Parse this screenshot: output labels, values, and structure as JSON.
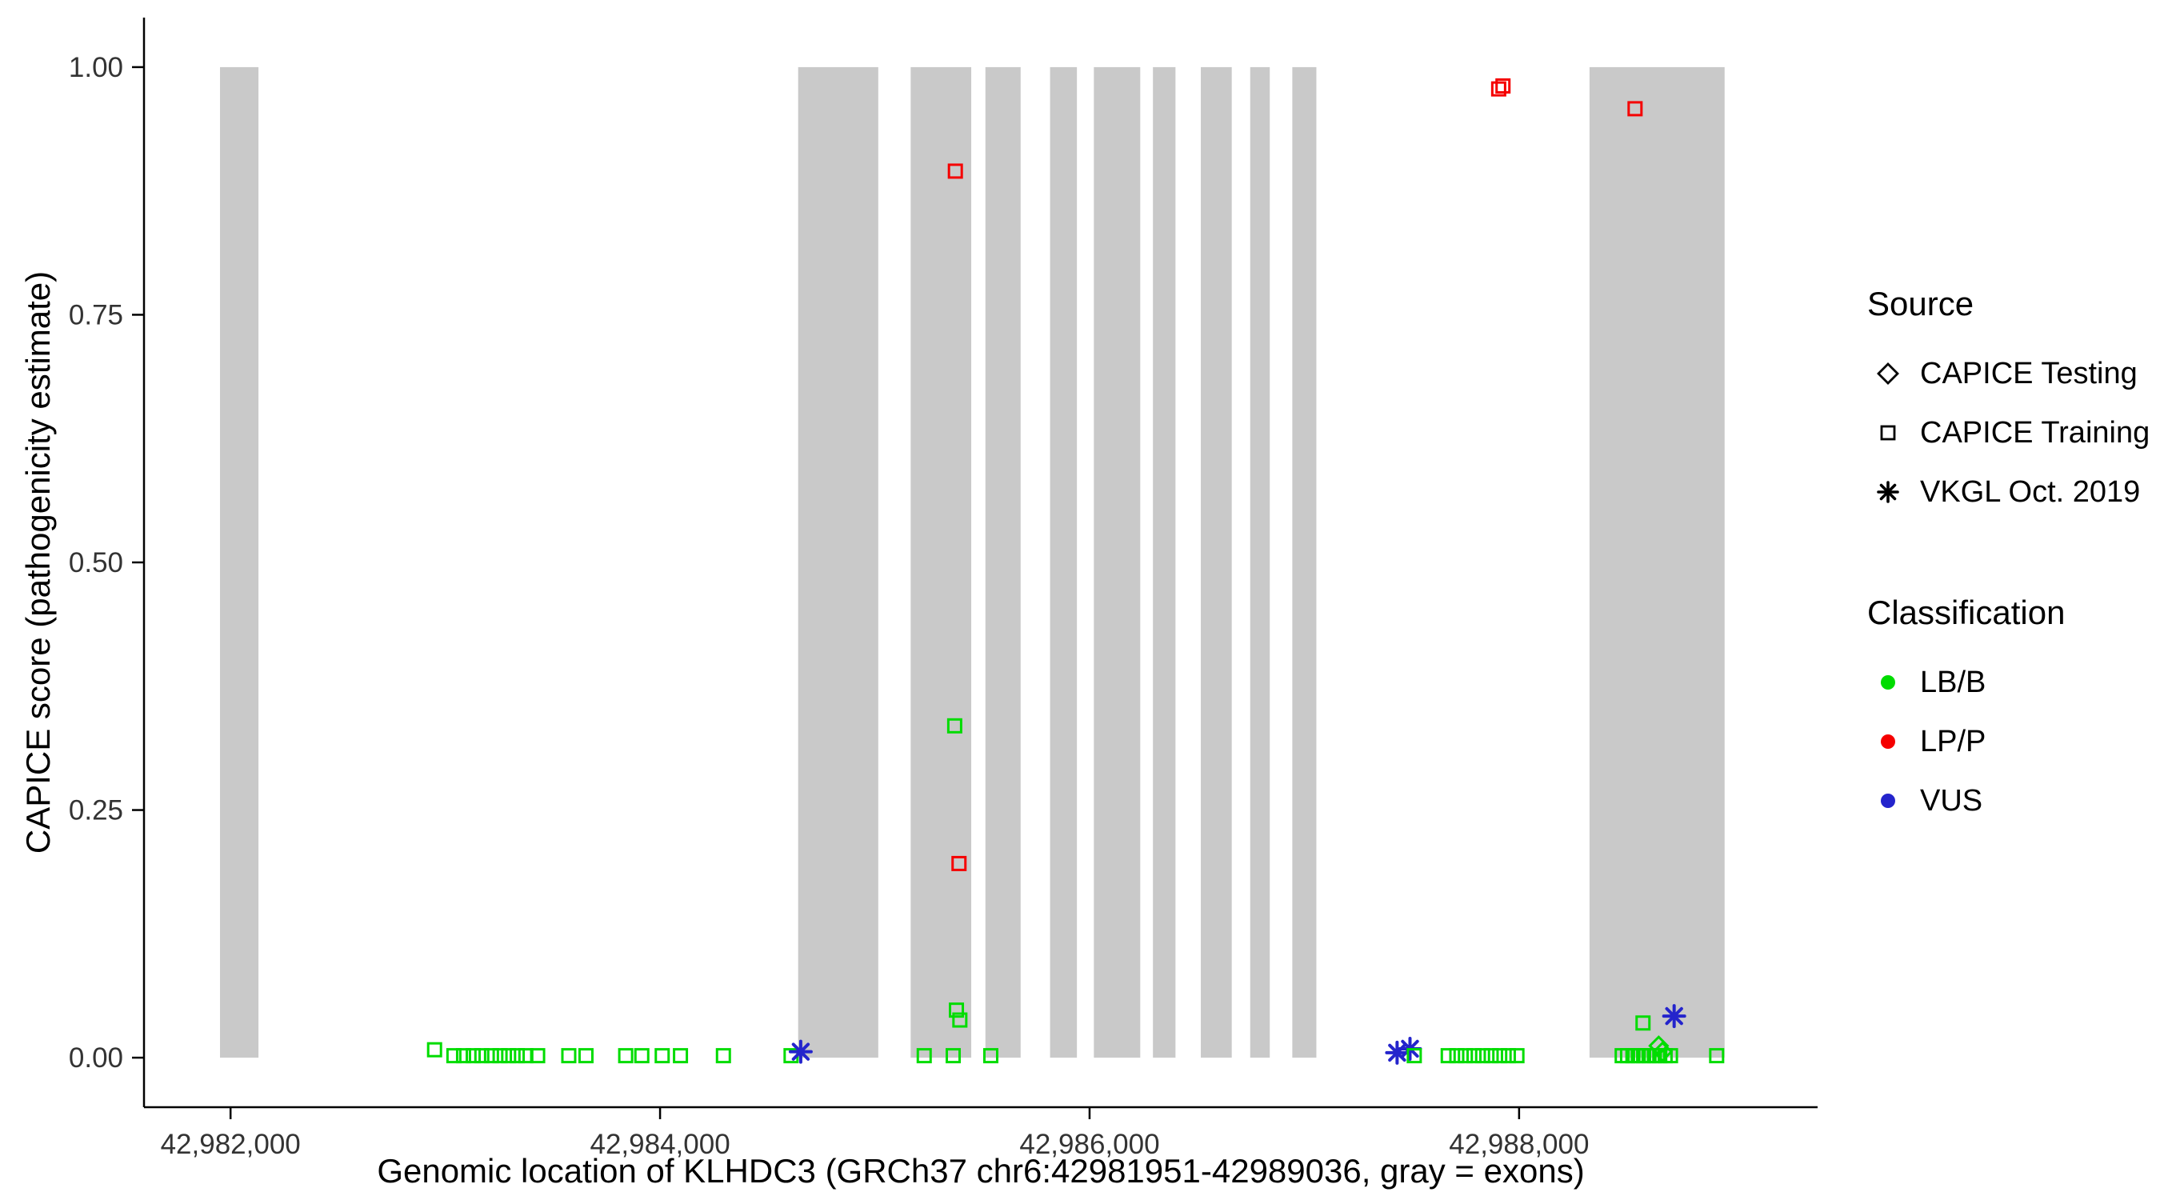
{
  "figure": {
    "background": "#FFFFFF"
  },
  "chart_data": {
    "type": "scatter",
    "title": "",
    "xlabel": "Genomic location of KLHDC3 (GRCh37 chr6:42981951-42989036, gray = exons)",
    "ylabel": "CAPICE score (pathogenicity estimate)",
    "xlim": [
      42981597,
      42989390
    ],
    "ylim": [
      -0.05,
      1.05
    ],
    "xticks": [
      42982000,
      42984000,
      42986000,
      42988000
    ],
    "xtick_labels": [
      "42,982,000",
      "42,984,000",
      "42,986,000",
      "42,988,000"
    ],
    "yticks": [
      0,
      0.25,
      0.5,
      0.75,
      1
    ],
    "ytick_labels": [
      "0.00",
      "0.25",
      "0.50",
      "0.75",
      "1.00"
    ],
    "grid": false,
    "legend_position": "right",
    "exon_color": "#C9C9C9",
    "axis_color": "#000000",
    "tick_text_color": "#333333",
    "exons": [
      [
        42981951,
        42982130
      ],
      [
        42984643,
        42985016
      ],
      [
        42985167,
        42985449
      ],
      [
        42985515,
        42985679
      ],
      [
        42985816,
        42985941
      ],
      [
        42986020,
        42986236
      ],
      [
        42986295,
        42986400
      ],
      [
        42986518,
        42986662
      ],
      [
        42986748,
        42986839
      ],
      [
        42986944,
        42987056
      ],
      [
        42988328,
        42988957
      ]
    ],
    "series_colors": {
      "LB/B": "#00DC00",
      "LP/P": "#F50000",
      "VUS": "#2424CC"
    },
    "marker_shapes": {
      "testing": "diamond",
      "training": "square",
      "vkgl": "asterisk"
    },
    "points": [
      {
        "x": 42982950,
        "y": 0.008,
        "source": "training",
        "classification": "LB/B"
      },
      {
        "x": 42983040,
        "y": 0.002,
        "source": "training",
        "classification": "LB/B"
      },
      {
        "x": 42983085,
        "y": 0.002,
        "source": "training",
        "classification": "LB/B"
      },
      {
        "x": 42983130,
        "y": 0.002,
        "source": "training",
        "classification": "LB/B"
      },
      {
        "x": 42983170,
        "y": 0.002,
        "source": "training",
        "classification": "LB/B"
      },
      {
        "x": 42983215,
        "y": 0.002,
        "source": "training",
        "classification": "LB/B"
      },
      {
        "x": 42983255,
        "y": 0.002,
        "source": "training",
        "classification": "LB/B"
      },
      {
        "x": 42983295,
        "y": 0.002,
        "source": "training",
        "classification": "LB/B"
      },
      {
        "x": 42983335,
        "y": 0.002,
        "source": "training",
        "classification": "LB/B"
      },
      {
        "x": 42983375,
        "y": 0.002,
        "source": "training",
        "classification": "LB/B"
      },
      {
        "x": 42983430,
        "y": 0.002,
        "source": "training",
        "classification": "LB/B"
      },
      {
        "x": 42983575,
        "y": 0.002,
        "source": "training",
        "classification": "LB/B"
      },
      {
        "x": 42983655,
        "y": 0.002,
        "source": "training",
        "classification": "LB/B"
      },
      {
        "x": 42983840,
        "y": 0.002,
        "source": "training",
        "classification": "LB/B"
      },
      {
        "x": 42983915,
        "y": 0.002,
        "source": "training",
        "classification": "LB/B"
      },
      {
        "x": 42984010,
        "y": 0.002,
        "source": "training",
        "classification": "LB/B"
      },
      {
        "x": 42984095,
        "y": 0.002,
        "source": "training",
        "classification": "LB/B"
      },
      {
        "x": 42984295,
        "y": 0.002,
        "source": "training",
        "classification": "LB/B"
      },
      {
        "x": 42984610,
        "y": 0.002,
        "source": "training",
        "classification": "LB/B"
      },
      {
        "x": 42984655,
        "y": 0.006,
        "source": "vkgl",
        "classification": "VUS"
      },
      {
        "x": 42985230,
        "y": 0.002,
        "source": "training",
        "classification": "LB/B"
      },
      {
        "x": 42985365,
        "y": 0.002,
        "source": "training",
        "classification": "LB/B"
      },
      {
        "x": 42985375,
        "y": 0.895,
        "source": "training",
        "classification": "LP/P"
      },
      {
        "x": 42985372,
        "y": 0.335,
        "source": "training",
        "classification": "LB/B"
      },
      {
        "x": 42985392,
        "y": 0.196,
        "source": "training",
        "classification": "LP/P"
      },
      {
        "x": 42985380,
        "y": 0.048,
        "source": "training",
        "classification": "LB/B"
      },
      {
        "x": 42985396,
        "y": 0.038,
        "source": "training",
        "classification": "LB/B"
      },
      {
        "x": 42985540,
        "y": 0.002,
        "source": "training",
        "classification": "LB/B"
      },
      {
        "x": 42987432,
        "y": 0.005,
        "source": "vkgl",
        "classification": "VUS"
      },
      {
        "x": 42987492,
        "y": 0.009,
        "source": "vkgl",
        "classification": "VUS"
      },
      {
        "x": 42987512,
        "y": 0.002,
        "source": "training",
        "classification": "LB/B"
      },
      {
        "x": 42987670,
        "y": 0.002,
        "source": "training",
        "classification": "LB/B"
      },
      {
        "x": 42987710,
        "y": 0.002,
        "source": "training",
        "classification": "LB/B"
      },
      {
        "x": 42987750,
        "y": 0.002,
        "source": "training",
        "classification": "LB/B"
      },
      {
        "x": 42987790,
        "y": 0.002,
        "source": "training",
        "classification": "LB/B"
      },
      {
        "x": 42987830,
        "y": 0.002,
        "source": "training",
        "classification": "LB/B"
      },
      {
        "x": 42987870,
        "y": 0.002,
        "source": "training",
        "classification": "LB/B"
      },
      {
        "x": 42987910,
        "y": 0.002,
        "source": "training",
        "classification": "LB/B"
      },
      {
        "x": 42987950,
        "y": 0.002,
        "source": "training",
        "classification": "LB/B"
      },
      {
        "x": 42987990,
        "y": 0.002,
        "source": "training",
        "classification": "LB/B"
      },
      {
        "x": 42987905,
        "y": 0.978,
        "source": "training",
        "classification": "LP/P"
      },
      {
        "x": 42987925,
        "y": 0.981,
        "source": "training",
        "classification": "LP/P"
      },
      {
        "x": 42988540,
        "y": 0.958,
        "source": "training",
        "classification": "LP/P"
      },
      {
        "x": 42988480,
        "y": 0.002,
        "source": "training",
        "classification": "LB/B"
      },
      {
        "x": 42988505,
        "y": 0.002,
        "source": "training",
        "classification": "LB/B"
      },
      {
        "x": 42988530,
        "y": 0.002,
        "source": "training",
        "classification": "LB/B"
      },
      {
        "x": 42988555,
        "y": 0.002,
        "source": "training",
        "classification": "LB/B"
      },
      {
        "x": 42988580,
        "y": 0.002,
        "source": "training",
        "classification": "LB/B"
      },
      {
        "x": 42988605,
        "y": 0.002,
        "source": "training",
        "classification": "LB/B"
      },
      {
        "x": 42988630,
        "y": 0.002,
        "source": "training",
        "classification": "LB/B"
      },
      {
        "x": 42988655,
        "y": 0.002,
        "source": "training",
        "classification": "LB/B"
      },
      {
        "x": 42988680,
        "y": 0.002,
        "source": "training",
        "classification": "LB/B"
      },
      {
        "x": 42988705,
        "y": 0.002,
        "source": "training",
        "classification": "LB/B"
      },
      {
        "x": 42988577,
        "y": 0.035,
        "source": "training",
        "classification": "LB/B"
      },
      {
        "x": 42988722,
        "y": 0.042,
        "source": "vkgl",
        "classification": "VUS"
      },
      {
        "x": 42988650,
        "y": 0.012,
        "source": "testing",
        "classification": "LB/B"
      },
      {
        "x": 42988668,
        "y": 0.006,
        "source": "testing",
        "classification": "LB/B"
      },
      {
        "x": 42988920,
        "y": 0.002,
        "source": "training",
        "classification": "LB/B"
      }
    ]
  },
  "legend": {
    "source": {
      "title": "Source",
      "items": [
        {
          "label": "CAPICE Testing",
          "marker": "diamond"
        },
        {
          "label": "CAPICE Training",
          "marker": "square"
        },
        {
          "label": "VKGL Oct. 2019",
          "marker": "asterisk"
        }
      ]
    },
    "classification": {
      "title": "Classification",
      "items": [
        {
          "label": "LB/B",
          "color": "#00DC00"
        },
        {
          "label": "LP/P",
          "color": "#F50000"
        },
        {
          "label": "VUS",
          "color": "#2424CC"
        }
      ]
    }
  }
}
